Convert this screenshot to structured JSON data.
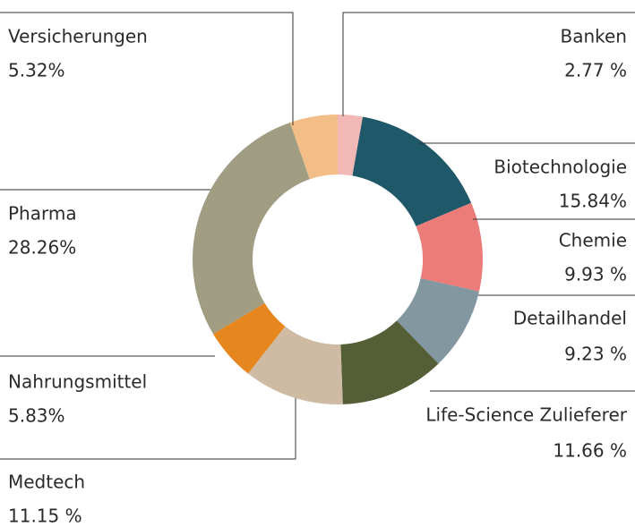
{
  "chart_data": {
    "type": "donut",
    "categories": [
      "Banken",
      "Biotechnologie",
      "Chemie",
      "Detailhandel",
      "Life-Science Zulieferer",
      "Medtech",
      "Nahrungsmittel",
      "Pharma",
      "Versicherungen"
    ],
    "values": [
      2.77,
      15.84,
      9.93,
      9.23,
      11.66,
      11.15,
      5.83,
      28.26,
      5.32
    ],
    "value_labels": [
      "2.77 %",
      "15.84%",
      "9.93 %",
      "9.23 %",
      "11.66 %",
      "11.15 %",
      "5.83%",
      "28.26%",
      "5.32%"
    ],
    "colors": [
      "#f2b8b5",
      "#1f5869",
      "#ec7c7a",
      "#8397a1",
      "#555f37",
      "#cfbba3",
      "#e6861f",
      "#a09d82",
      "#f2bd86"
    ]
  }
}
